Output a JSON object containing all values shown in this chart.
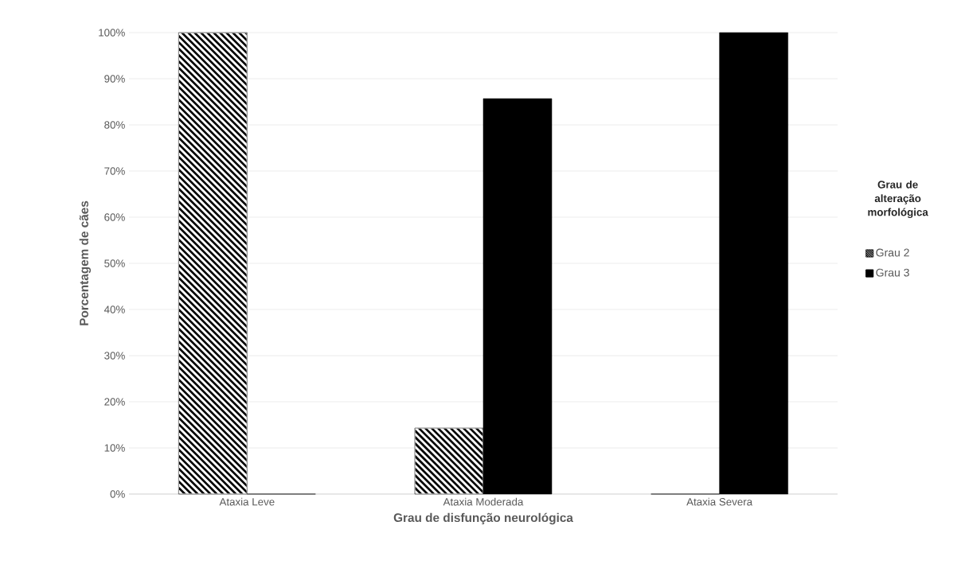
{
  "chart_data": {
    "type": "bar",
    "xlabel": "Grau de disfunção neurológica",
    "ylabel": "Porcentagem de cães",
    "legend_title": "Grau de alteração morfológica",
    "categories": [
      "Ataxia Leve",
      "Ataxia Moderada",
      "Ataxia Severa"
    ],
    "series": [
      {
        "name": "Grau 2",
        "color": "#000000",
        "values": [
          100,
          14.3,
          0
        ]
      },
      {
        "name": "Grau 3",
        "color": "#000000",
        "values": [
          0,
          85.7,
          100
        ]
      }
    ],
    "ylim": [
      0,
      100
    ],
    "yticks": [
      {
        "value": 0,
        "label": "0%"
      },
      {
        "value": 10,
        "label": "10%"
      },
      {
        "value": 20,
        "label": "20%"
      },
      {
        "value": 30,
        "label": "30%"
      },
      {
        "value": 40,
        "label": "40%"
      },
      {
        "value": 50,
        "label": "50%"
      },
      {
        "value": 60,
        "label": "60%"
      },
      {
        "value": 70,
        "label": "70%"
      },
      {
        "value": 80,
        "label": "80%"
      },
      {
        "value": 90,
        "label": "90%"
      },
      {
        "value": 100,
        "label": "100%"
      }
    ],
    "grid": "y",
    "legend": "right"
  }
}
